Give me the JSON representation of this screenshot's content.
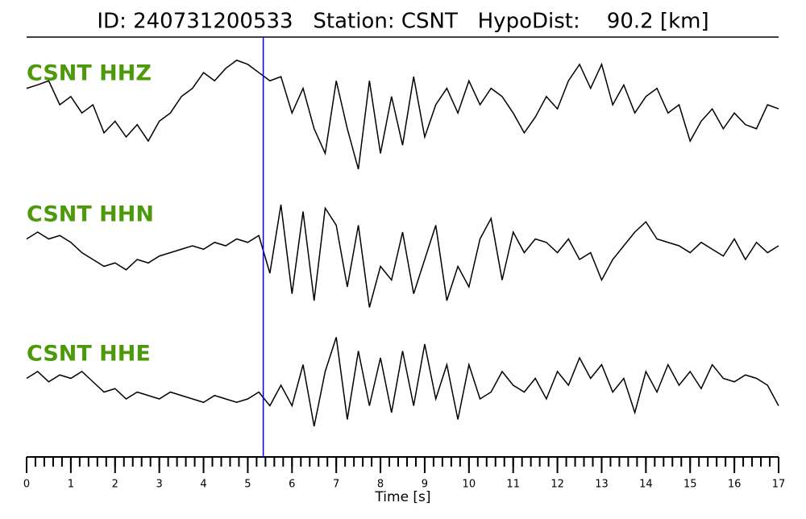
{
  "chart_data": {
    "type": "line",
    "title": "ID: 240731200533   Station: CSNT   HypoDist:    90.2 [km]",
    "x_label": "Time [s]",
    "xlim": [
      0,
      17
    ],
    "xticks": [
      0,
      1,
      2,
      3,
      4,
      5,
      6,
      7,
      8,
      9,
      10,
      11,
      12,
      13,
      14,
      15,
      16,
      17
    ],
    "minor_tick_interval": 0.2,
    "ylim": [
      -1,
      1
    ],
    "pick_time": 5.35,
    "pick_color": "#0000ff",
    "label_color": "#4c9a0c",
    "x": [
      0,
      0.25,
      0.5,
      0.75,
      1,
      1.25,
      1.5,
      1.75,
      2,
      2.25,
      2.5,
      2.75,
      3,
      3.25,
      3.5,
      3.75,
      4,
      4.25,
      4.5,
      4.75,
      5,
      5.25,
      5.5,
      5.75,
      6,
      6.25,
      6.5,
      6.75,
      7,
      7.25,
      7.5,
      7.75,
      8,
      8.25,
      8.5,
      8.75,
      9,
      9.25,
      9.5,
      9.75,
      10,
      10.25,
      10.5,
      10.75,
      11,
      11.25,
      11.5,
      11.75,
      12,
      12.25,
      12.5,
      12.75,
      13,
      13.25,
      13.5,
      13.75,
      14,
      14.25,
      14.5,
      14.75,
      15,
      15.25,
      15.5,
      15.75,
      16,
      16.25,
      16.5,
      16.75,
      17
    ],
    "series": [
      {
        "name": "CSNT HHZ",
        "color": "#000000",
        "values": [
          0.24,
          0.29,
          0.35,
          0,
          0.12,
          -0.12,
          0,
          -0.41,
          -0.24,
          -0.47,
          -0.29,
          -0.53,
          -0.24,
          -0.12,
          0.12,
          0.24,
          0.47,
          0.35,
          0.53,
          0.65,
          0.59,
          0.47,
          0.35,
          0.41,
          -0.12,
          0.24,
          -0.35,
          -0.71,
          0.35,
          -0.35,
          -0.94,
          0.35,
          -0.71,
          0.12,
          -0.59,
          0.41,
          -0.47,
          0,
          0.24,
          -0.12,
          0.35,
          0,
          0.24,
          0.12,
          -0.12,
          -0.41,
          -0.18,
          0.12,
          -0.06,
          0.35,
          0.59,
          0.24,
          0.59,
          0,
          0.29,
          -0.12,
          0.12,
          0.24,
          -0.12,
          0,
          -0.53,
          -0.24,
          -0.06,
          -0.35,
          -0.12,
          -0.29,
          -0.35,
          0,
          -0.06
        ]
      },
      {
        "name": "CSNT HHN",
        "color": "#000000",
        "values": [
          0.1,
          0.2,
          0.1,
          0.15,
          0.05,
          -0.1,
          -0.2,
          -0.3,
          -0.25,
          -0.35,
          -0.2,
          -0.25,
          -0.15,
          -0.1,
          -0.05,
          0,
          -0.05,
          0.05,
          0,
          0.1,
          0.05,
          0.15,
          -0.4,
          0.6,
          -0.7,
          0.5,
          -0.8,
          0.55,
          0.3,
          -0.6,
          0.3,
          -0.9,
          -0.3,
          -0.5,
          0.2,
          -0.7,
          -0.2,
          0.3,
          -0.8,
          -0.3,
          -0.6,
          0.1,
          0.4,
          -0.5,
          0.2,
          -0.1,
          0.1,
          0.05,
          -0.1,
          0.1,
          -0.2,
          -0.1,
          -0.5,
          -0.2,
          0,
          0.2,
          0.35,
          0.1,
          0.05,
          0,
          -0.1,
          0.05,
          -0.05,
          -0.15,
          0.1,
          -0.2,
          0.05,
          -0.1,
          0
        ]
      },
      {
        "name": "CSNT HHE",
        "color": "#000000",
        "values": [
          0.1,
          0.2,
          0.05,
          0.15,
          0.1,
          0.2,
          0.05,
          -0.1,
          -0.05,
          -0.2,
          -0.1,
          -0.15,
          -0.2,
          -0.1,
          -0.15,
          -0.2,
          -0.25,
          -0.15,
          -0.2,
          -0.25,
          -0.2,
          -0.1,
          -0.3,
          0,
          -0.3,
          0.3,
          -0.6,
          0.2,
          0.7,
          -0.5,
          0.5,
          -0.3,
          0.4,
          -0.4,
          0.5,
          -0.3,
          0.6,
          -0.2,
          0.3,
          -0.5,
          0.3,
          -0.2,
          -0.1,
          0.2,
          0,
          -0.1,
          0.1,
          -0.2,
          0.2,
          0,
          0.4,
          0.1,
          0.3,
          -0.1,
          0.1,
          -0.4,
          0.2,
          -0.1,
          0.3,
          0,
          0.2,
          -0.05,
          0.3,
          0.1,
          0.05,
          0.15,
          0.1,
          0,
          -0.3
        ]
      }
    ]
  }
}
